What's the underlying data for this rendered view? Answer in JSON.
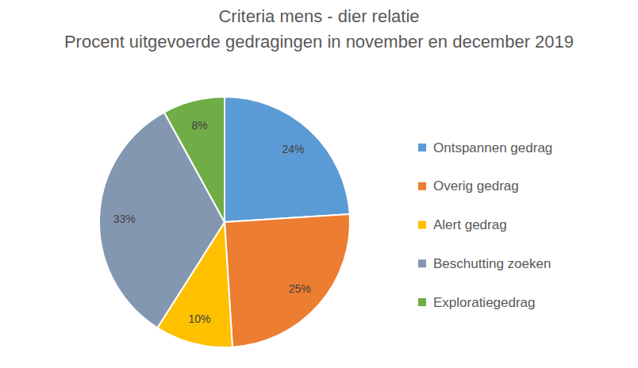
{
  "chart_data": {
    "type": "pie",
    "title": "Criteria mens - dier relatie",
    "subtitle": "Procent uitgevoerde gedragingen in november en december 2019",
    "categories": [
      "Ontspannen gedrag",
      "Overig gedrag",
      "Alert gedrag",
      "Beschutting zoeken",
      "Exploratiegedrag"
    ],
    "values": [
      24,
      25,
      10,
      33,
      8
    ],
    "value_labels": [
      "24%",
      "25%",
      "10%",
      "33%",
      "8%"
    ],
    "colors": [
      "#5b9bd5",
      "#ed7d31",
      "#ffc000",
      "#8497b0",
      "#70ad47"
    ],
    "data_labels": true,
    "legend": "right"
  }
}
